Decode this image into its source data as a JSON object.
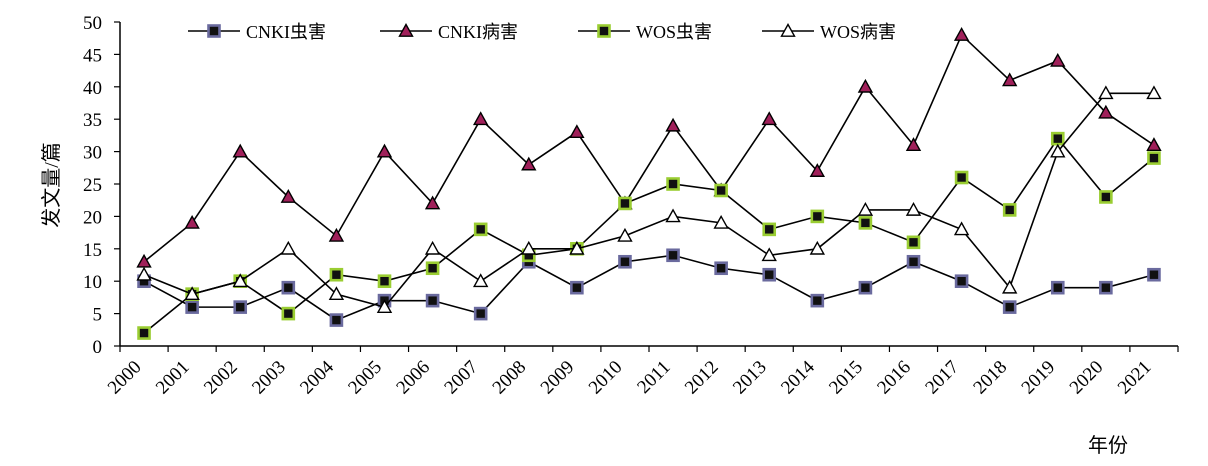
{
  "chart_data": {
    "type": "line",
    "categories": [
      "2000",
      "2001",
      "2002",
      "2003",
      "2004",
      "2005",
      "2006",
      "2007",
      "2008",
      "2009",
      "2010",
      "2011",
      "2012",
      "2013",
      "2014",
      "2015",
      "2016",
      "2017",
      "2018",
      "2019",
      "2020",
      "2021"
    ],
    "series": [
      {
        "name": "CNKI虫害",
        "marker": "square-navy",
        "color": "#000000",
        "fill": "#111111",
        "edge": "#6a6a9e",
        "values": [
          10,
          6,
          6,
          9,
          4,
          7,
          7,
          5,
          13,
          9,
          13,
          14,
          12,
          11,
          7,
          9,
          13,
          10,
          6,
          9,
          9,
          11
        ]
      },
      {
        "name": "CNKI病害",
        "marker": "triangle-filled",
        "color": "#000000",
        "fill": "#a0205a",
        "edge": "#000000",
        "values": [
          13,
          19,
          30,
          23,
          17,
          30,
          22,
          35,
          28,
          33,
          22,
          34,
          24,
          35,
          27,
          40,
          31,
          48,
          41,
          44,
          36,
          31
        ]
      },
      {
        "name": "WOS虫害",
        "marker": "square-green",
        "color": "#000000",
        "fill": "#111111",
        "edge": "#9acd32",
        "values": [
          2,
          8,
          10,
          5,
          11,
          10,
          12,
          18,
          14,
          15,
          22,
          25,
          24,
          18,
          20,
          19,
          16,
          26,
          21,
          32,
          23,
          29
        ]
      },
      {
        "name": "WOS病害",
        "marker": "triangle-open",
        "color": "#000000",
        "fill": "#ffffff",
        "edge": "#000000",
        "values": [
          11,
          8,
          10,
          15,
          8,
          6,
          15,
          10,
          15,
          15,
          17,
          20,
          19,
          14,
          15,
          21,
          21,
          18,
          9,
          30,
          39,
          39
        ]
      }
    ],
    "ylabel": "发文量/篇",
    "xlabel": "年份",
    "ylim": [
      0,
      50
    ],
    "yticks": [
      0,
      5,
      10,
      15,
      20,
      25,
      30,
      35,
      40,
      45,
      50
    ],
    "grid": false,
    "legend_position": "top"
  }
}
